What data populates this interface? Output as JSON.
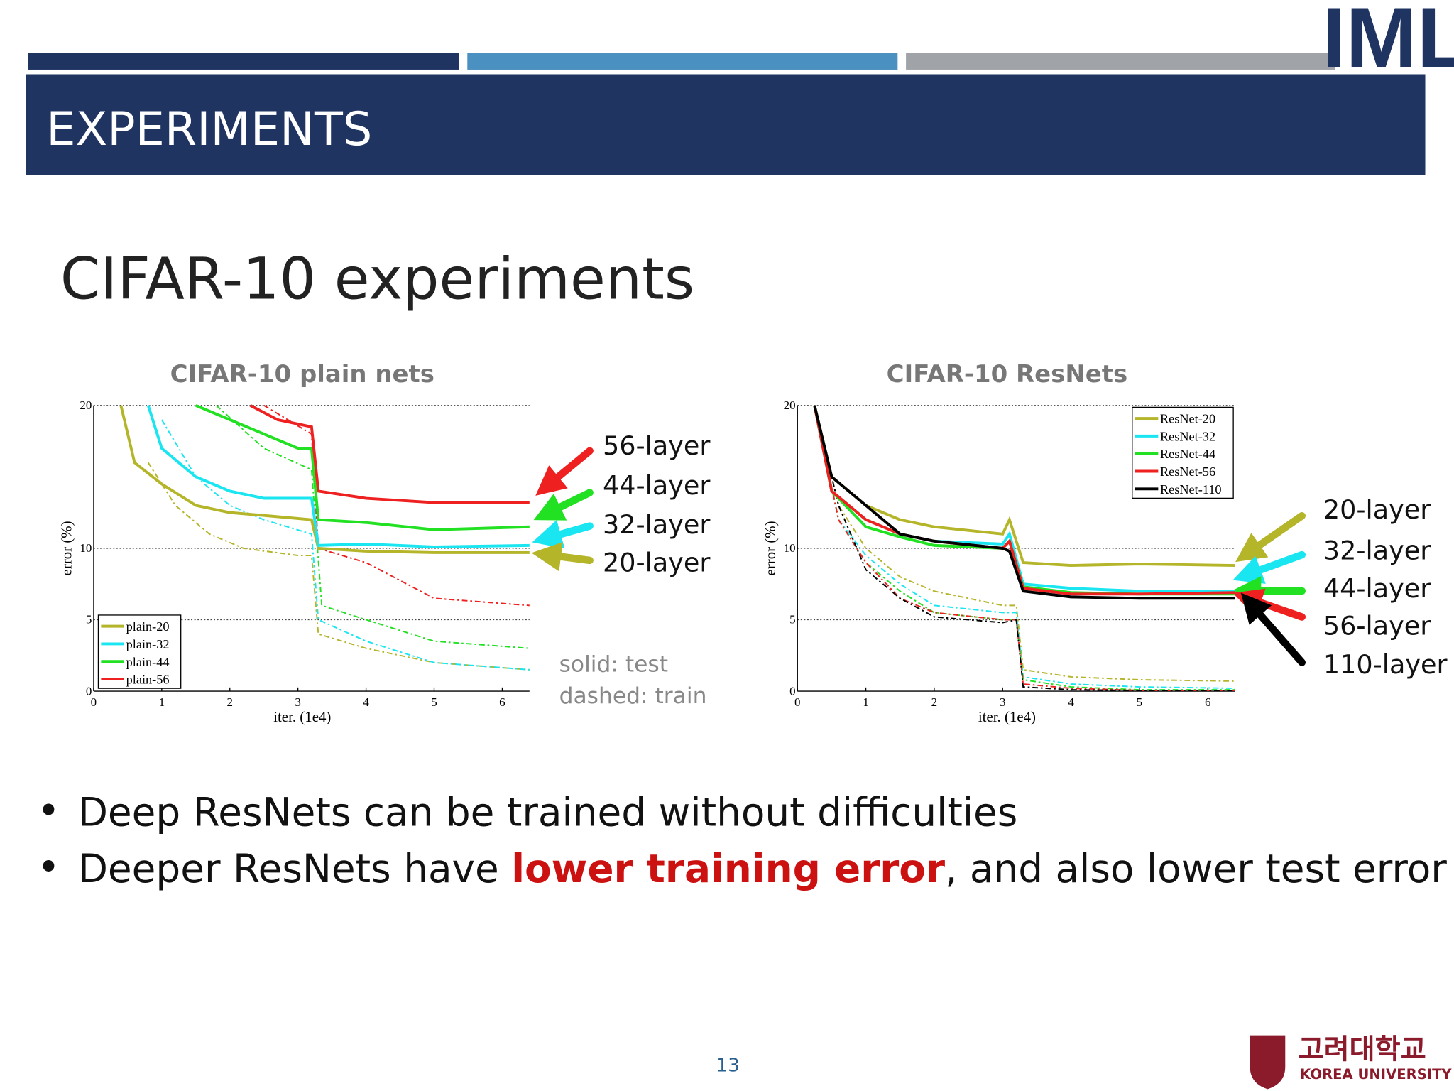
{
  "logo": "IML",
  "header": {
    "title": "EXPERIMENTS"
  },
  "slide_title": "CIFAR-10 experiments",
  "chart_data": [
    {
      "type": "line",
      "title": "CIFAR-10 plain nets",
      "x_label": "iter. (1e4)",
      "y_label": "error (%)",
      "xlim": [
        0,
        6.4
      ],
      "xticks": [
        0,
        1,
        2,
        3,
        4,
        5,
        6
      ],
      "ylim": [
        0,
        20
      ],
      "yticks": [
        0,
        5,
        10,
        20
      ],
      "grid": true,
      "legend": "lower left",
      "series": [
        {
          "name": "plain-20",
          "color": "#b5b52a",
          "test": {
            "x": [
              0.4,
              0.6,
              1,
              1.5,
              2,
              2.5,
              3.2,
              3.3,
              4,
              5,
              6.4
            ],
            "values": [
              20,
              16,
              14.5,
              13,
              12.5,
              12.3,
              12,
              10,
              9.8,
              9.7,
              9.7
            ]
          },
          "train": {
            "x": [
              0.8,
              1.2,
              1.7,
              2.2,
              3,
              3.2,
              3.3,
              4,
              5,
              6.4
            ],
            "values": [
              16,
              13,
              11,
              10,
              9.5,
              9.5,
              4,
              3,
              2,
              1.5
            ]
          }
        },
        {
          "name": "plain-32",
          "color": "#19e6f0",
          "test": {
            "x": [
              0.8,
              1,
              1.5,
              2,
              2.5,
              3.2,
              3.3,
              4,
              5,
              6.4
            ],
            "values": [
              20,
              17,
              15,
              14,
              13.5,
              13.5,
              10.2,
              10.3,
              10.1,
              10.2
            ]
          },
          "train": {
            "x": [
              1,
              1.5,
              2,
              2.5,
              3.2,
              3.3,
              4,
              5,
              6.4
            ],
            "values": [
              19,
              15,
              13,
              12,
              11,
              5,
              3.5,
              2,
              1.5
            ]
          }
        },
        {
          "name": "plain-44",
          "color": "#22e022",
          "test": {
            "x": [
              1.5,
              2,
              2.5,
              3,
              3.2,
              3.3,
              4,
              5,
              6.4
            ],
            "values": [
              20,
              19,
              18,
              17,
              17,
              12,
              11.8,
              11.3,
              11.5
            ]
          },
          "train": {
            "x": [
              1.8,
              2.5,
              3.2,
              3.35,
              4,
              5,
              6.4
            ],
            "values": [
              20,
              17,
              15.5,
              6,
              5,
              3.5,
              3
            ]
          }
        },
        {
          "name": "plain-56",
          "color": "#ee2020",
          "test": {
            "x": [
              2.3,
              2.7,
              3.2,
              3.3,
              4,
              5,
              6.4
            ],
            "values": [
              20,
              19,
              18.5,
              14,
              13.5,
              13.2,
              13.2
            ]
          },
          "train": {
            "x": [
              2.5,
              3.2,
              3.3,
              4,
              5,
              6.4
            ],
            "values": [
              20,
              18,
              10,
              9,
              6.5,
              6
            ]
          }
        }
      ],
      "annotations": [
        "56-layer",
        "44-layer",
        "32-layer",
        "20-layer"
      ],
      "notes": [
        "solid: test",
        "dashed: train"
      ]
    },
    {
      "type": "line",
      "title": "CIFAR-10 ResNets",
      "x_label": "iter. (1e4)",
      "y_label": "error (%)",
      "xlim": [
        0,
        6.4
      ],
      "xticks": [
        0,
        1,
        2,
        3,
        4,
        5,
        6
      ],
      "ylim": [
        0,
        20
      ],
      "yticks": [
        0,
        5,
        10,
        20
      ],
      "grid": true,
      "legend": "upper right",
      "series": [
        {
          "name": "ResNet-20",
          "color": "#b5b52a",
          "test": {
            "x": [
              0.25,
              0.5,
              1,
              1.5,
              2,
              3,
              3.1,
              3.3,
              4,
              5,
              6.4
            ],
            "values": [
              20,
              15,
              13,
              12,
              11.5,
              11,
              12,
              9,
              8.8,
              8.9,
              8.8
            ]
          },
          "train": {
            "x": [
              0.25,
              0.6,
              1,
              1.5,
              2,
              3,
              3.2,
              3.3,
              4,
              5,
              6.4
            ],
            "values": [
              20,
              13,
              10,
              8,
              7,
              6,
              6,
              1.5,
              1,
              0.8,
              0.7
            ]
          }
        },
        {
          "name": "ResNet-32",
          "color": "#19e6f0",
          "test": {
            "x": [
              0.25,
              0.5,
              1,
              1.5,
              2,
              3,
              3.1,
              3.3,
              4,
              5,
              6.4
            ],
            "values": [
              20,
              14,
              12,
              11,
              10.5,
              10.3,
              11,
              7.5,
              7.2,
              7,
              7
            ]
          },
          "train": {
            "x": [
              0.25,
              0.6,
              1,
              1.5,
              2,
              3,
              3.2,
              3.3,
              4,
              5,
              6.4
            ],
            "values": [
              20,
              12,
              9.5,
              7.5,
              6,
              5.5,
              5.5,
              1,
              0.5,
              0.3,
              0.2
            ]
          }
        },
        {
          "name": "ResNet-44",
          "color": "#22e022",
          "test": {
            "x": [
              0.25,
              0.5,
              1,
              1.5,
              2,
              3,
              3.1,
              3.3,
              4,
              5,
              6.4
            ],
            "values": [
              20,
              14,
              11.5,
              10.8,
              10.2,
              10,
              10.5,
              7.3,
              6.9,
              6.8,
              6.8
            ]
          },
          "train": {
            "x": [
              0.25,
              0.6,
              1,
              1.5,
              2,
              3,
              3.2,
              3.3,
              4,
              5,
              6.4
            ],
            "values": [
              20,
              12,
              9,
              7,
              5.5,
              5,
              5,
              0.8,
              0.3,
              0.1,
              0.1
            ]
          }
        },
        {
          "name": "ResNet-56",
          "color": "#ee2020",
          "test": {
            "x": [
              0.25,
              0.5,
              1,
              1.5,
              2,
              3,
              3.1,
              3.3,
              4,
              5,
              6.4
            ],
            "values": [
              20,
              14,
              12,
              11,
              10.5,
              10,
              10.5,
              7.2,
              6.8,
              6.8,
              6.9
            ]
          },
          "train": {
            "x": [
              0.25,
              0.6,
              1,
              1.5,
              2,
              3,
              3.2,
              3.3,
              4,
              5,
              6.4
            ],
            "values": [
              20,
              12,
              9,
              6.5,
              5.5,
              5,
              5,
              0.5,
              0.2,
              0.05,
              0.05
            ]
          }
        },
        {
          "name": "ResNet-110",
          "color": "#000000",
          "test": {
            "x": [
              0.25,
              0.5,
              1,
              1.5,
              2,
              3,
              3.1,
              3.3,
              4,
              5,
              6.4
            ],
            "values": [
              20,
              15,
              13,
              11,
              10.5,
              10,
              9.8,
              7,
              6.6,
              6.5,
              6.5
            ]
          },
          "train": {
            "x": [
              0.25,
              0.6,
              1,
              1.5,
              2,
              3,
              3.2,
              3.3,
              4,
              5,
              6.4
            ],
            "values": [
              20,
              13,
              8.5,
              6.5,
              5.2,
              4.8,
              5,
              0.3,
              0.1,
              0.05,
              0.05
            ]
          }
        }
      ],
      "annotations": [
        "20-layer",
        "32-layer",
        "44-layer",
        "56-layer",
        "110-layer"
      ]
    }
  ],
  "bullets": [
    [
      "Deep ResNets can be trained without difficulties"
    ],
    [
      "Deeper ResNets have ",
      "lower training error",
      ", and also lower test error"
    ]
  ],
  "page_number": "13",
  "footer": {
    "korean": "고려대학교",
    "english": "KOREA UNIVERSITY"
  }
}
